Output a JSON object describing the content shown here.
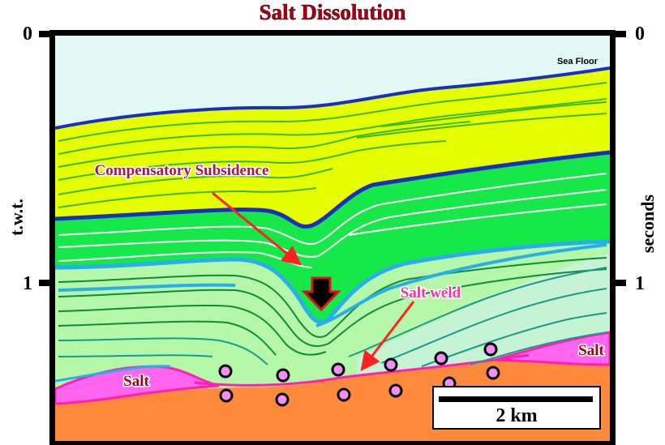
{
  "title": "Salt Dissolution",
  "axis": {
    "left_top": "0",
    "left_mid": "1",
    "right_top": "0",
    "right_mid": "1",
    "left_label": "t.w.t.",
    "right_label": "seconds"
  },
  "labels": {
    "sea_floor": "Sea Floor",
    "compensatory_subsidence": "Compensatory Subsidence",
    "salt_weld": "Salt weld",
    "salt_left": "Salt",
    "salt_right": "Salt"
  },
  "scale_bar": {
    "label": "2 km"
  },
  "colors": {
    "water": "#e2f8f4",
    "yellow_unit": "#e6ff00",
    "green_unit": "#16e84a",
    "light_green_unit": "#b4f7a8",
    "salt": "#ff66f0",
    "basement": "#ff8a3c",
    "horizon_blue": "#1a2fc0",
    "horizon_cyan": "#2aaeea",
    "arrow": "#ff2020",
    "title": "#a3001b"
  }
}
